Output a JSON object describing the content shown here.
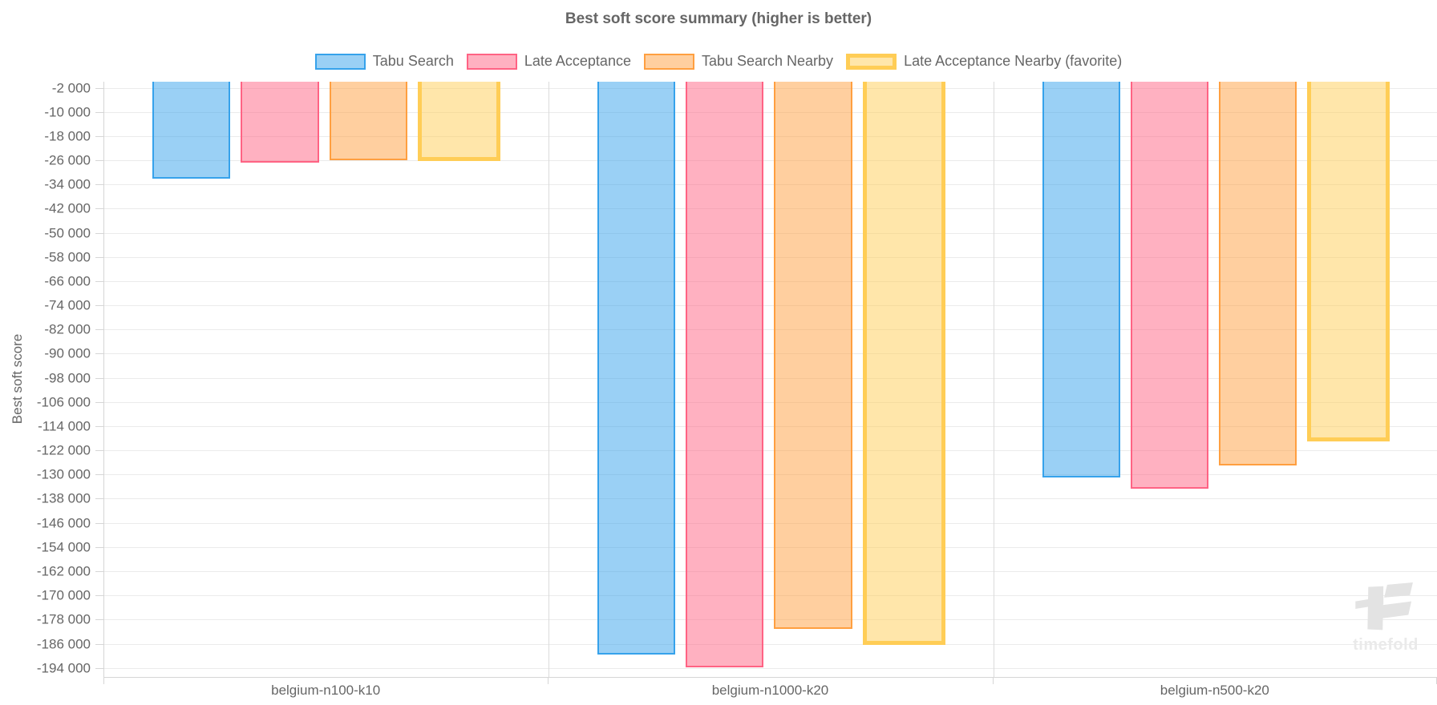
{
  "chart_data": {
    "type": "bar",
    "title": "Best soft score summary (higher is better)",
    "xlabel": "",
    "ylabel": "Best soft score",
    "legend_position": "top",
    "grid": true,
    "categories": [
      "belgium-n100-k10",
      "belgium-n1000-k20",
      "belgium-n500-k20"
    ],
    "series": [
      {
        "name": "Tabu Search",
        "border_color": "#36A2EB",
        "fill_color": "rgba(54,162,235,0.5)",
        "border_width": 2,
        "values": [
          -32200,
          -189600,
          -131100
        ]
      },
      {
        "name": "Late Acceptance",
        "border_color": "#FF6384",
        "fill_color": "rgba(255,99,132,0.5)",
        "border_width": 2,
        "values": [
          -26700,
          -193700,
          -134600
        ]
      },
      {
        "name": "Tabu Search Nearby",
        "border_color": "#FF9F40",
        "fill_color": "rgba(255,159,64,0.5)",
        "border_width": 2,
        "values": [
          -26100,
          -181000,
          -127000
        ]
      },
      {
        "name": "Late Acceptance Nearby (favorite)",
        "border_color": "#FFCD56",
        "fill_color": "rgba(255,205,86,0.5)",
        "border_width": 5,
        "favorite": true,
        "values": [
          -26200,
          -186500,
          -119000
        ]
      }
    ],
    "y_axis": {
      "first_tick": -2000,
      "tick_step": -8000,
      "scale_min": -197000,
      "scale_max": 0,
      "tick_labels": [
        "-2 000",
        "-10 000",
        "-18 000",
        "-26 000",
        "-34 000",
        "-42 000",
        "-50 000",
        "-58 000",
        "-66 000",
        "-74 000",
        "-82 000",
        "-90 000",
        "-98 000",
        "-106 000",
        "-114 000",
        "-122 000",
        "-130 000",
        "-138 000",
        "-146 000",
        "-154 000",
        "-162 000",
        "-170 000",
        "-178 000",
        "-186 000",
        "-194 000"
      ]
    }
  },
  "watermark": {
    "text": "timefold"
  },
  "palette": {
    "text": "#666666",
    "grid": "#ebebeb",
    "separator": "#dbdbdb",
    "axis": "#d6d6d6",
    "background": "#ffffff",
    "wmmark": "#e3e3e3",
    "wmtext": "#eaeaea"
  }
}
